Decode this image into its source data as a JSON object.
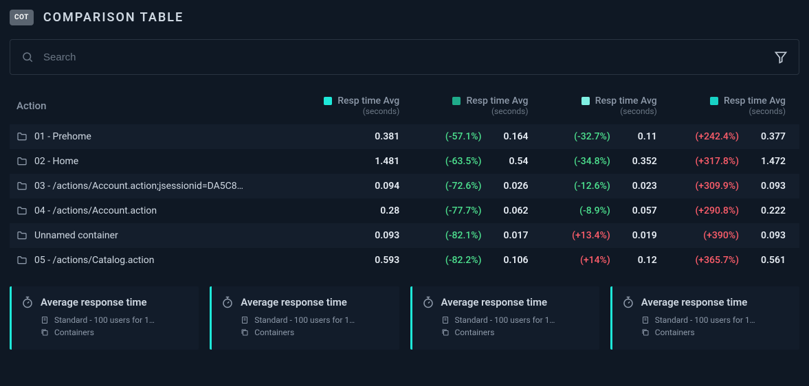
{
  "header": {
    "badge": "COT",
    "title": "COMPARISON TABLE"
  },
  "search": {
    "placeholder": "Search"
  },
  "columns": {
    "action_label": "Action",
    "groups": [
      {
        "label": "Resp time Avg",
        "sublabel": "(seconds)",
        "swatch": "#1ee8d9"
      },
      {
        "label": "Resp time Avg",
        "sublabel": "(seconds)",
        "swatch": "#1fab8a"
      },
      {
        "label": "Resp time Avg",
        "sublabel": "(seconds)",
        "swatch": "#7ff0e3"
      },
      {
        "label": "Resp time Avg",
        "sublabel": "(seconds)",
        "swatch": "#18d2c5"
      }
    ]
  },
  "rows": [
    {
      "action": "01 - Prehome",
      "cells": [
        {
          "delta": "",
          "delta_sign": "",
          "value": "0.381"
        },
        {
          "delta": "(-57.1%)",
          "delta_sign": "neg",
          "value": "0.164"
        },
        {
          "delta": "(-32.7%)",
          "delta_sign": "neg",
          "value": "0.11"
        },
        {
          "delta": "(+242.4%)",
          "delta_sign": "pos",
          "value": "0.377"
        }
      ]
    },
    {
      "action": "02 - Home",
      "cells": [
        {
          "delta": "",
          "delta_sign": "",
          "value": "1.481"
        },
        {
          "delta": "(-63.5%)",
          "delta_sign": "neg",
          "value": "0.54"
        },
        {
          "delta": "(-34.8%)",
          "delta_sign": "neg",
          "value": "0.352"
        },
        {
          "delta": "(+317.8%)",
          "delta_sign": "pos",
          "value": "1.472"
        }
      ]
    },
    {
      "action": "03 - /actions/Account.action;jsessionid=DA5C8…",
      "cells": [
        {
          "delta": "",
          "delta_sign": "",
          "value": "0.094"
        },
        {
          "delta": "(-72.6%)",
          "delta_sign": "neg",
          "value": "0.026"
        },
        {
          "delta": "(-12.6%)",
          "delta_sign": "neg",
          "value": "0.023"
        },
        {
          "delta": "(+309.9%)",
          "delta_sign": "pos",
          "value": "0.093"
        }
      ]
    },
    {
      "action": "04 - /actions/Account.action",
      "cells": [
        {
          "delta": "",
          "delta_sign": "",
          "value": "0.28"
        },
        {
          "delta": "(-77.7%)",
          "delta_sign": "neg",
          "value": "0.062"
        },
        {
          "delta": "(-8.9%)",
          "delta_sign": "neg",
          "value": "0.057"
        },
        {
          "delta": "(+290.8%)",
          "delta_sign": "pos",
          "value": "0.222"
        }
      ]
    },
    {
      "action": "Unnamed container",
      "cells": [
        {
          "delta": "",
          "delta_sign": "",
          "value": "0.093"
        },
        {
          "delta": "(-82.1%)",
          "delta_sign": "neg",
          "value": "0.017"
        },
        {
          "delta": "(+13.4%)",
          "delta_sign": "pos",
          "value": "0.019"
        },
        {
          "delta": "(+390%)",
          "delta_sign": "pos",
          "value": "0.093"
        }
      ]
    },
    {
      "action": "05 - /actions/Catalog.action",
      "cells": [
        {
          "delta": "",
          "delta_sign": "",
          "value": "0.593"
        },
        {
          "delta": "(-82.2%)",
          "delta_sign": "neg",
          "value": "0.106"
        },
        {
          "delta": "(+14%)",
          "delta_sign": "pos",
          "value": "0.12"
        },
        {
          "delta": "(+365.7%)",
          "delta_sign": "pos",
          "value": "0.561"
        }
      ]
    }
  ],
  "cards": [
    {
      "title": "Average response time",
      "line1": "Standard - 100 users for 1…",
      "line2": "Containers"
    },
    {
      "title": "Average response time",
      "line1": "Standard - 100 users for 1…",
      "line2": "Containers"
    },
    {
      "title": "Average response time",
      "line1": "Standard - 100 users for 1…",
      "line2": "Containers"
    },
    {
      "title": "Average response time",
      "line1": "Standard - 100 users for 1…",
      "line2": "Containers"
    }
  ],
  "colors": {
    "bg": "#0f1824",
    "row_alt": "#141e2c",
    "card_bg": "#121c2a",
    "accent": "#1ee8d9",
    "text": "#c4cdd8",
    "muted": "#8d99a9",
    "negative": "#4de28f",
    "positive": "#ff5e6b"
  }
}
